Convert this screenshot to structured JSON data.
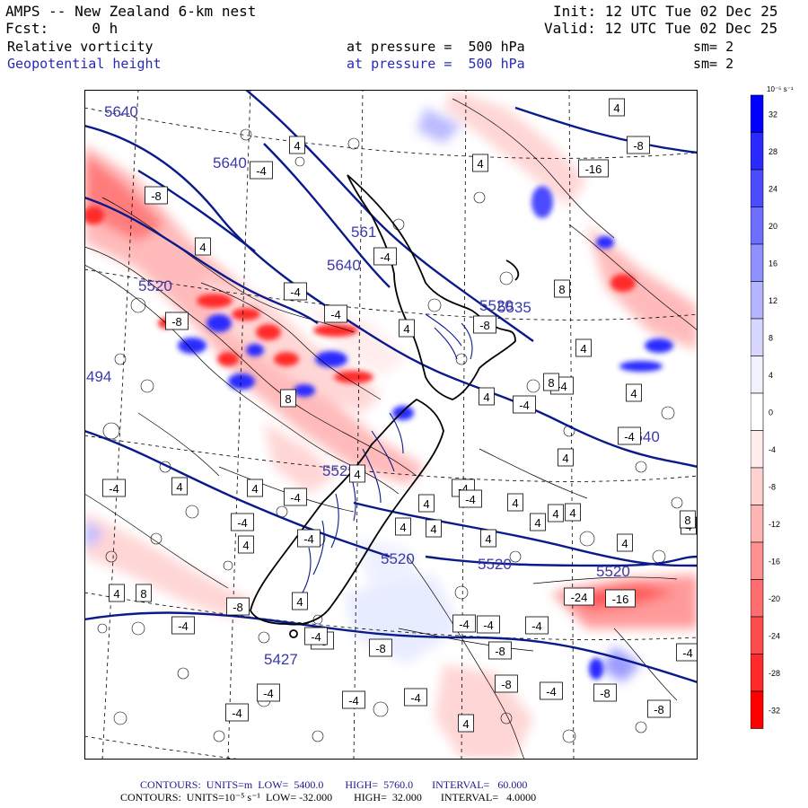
{
  "header": {
    "title": "AMPS -- New Zealand 6-km nest",
    "forecast": "Fcst:     0 h",
    "init": "Init: 12 UTC Tue 02 Dec 25",
    "valid": "Valid: 12 UTC Tue 02 Dec 25",
    "field1": {
      "name": "Relative vorticity",
      "level": "at pressure =  500 hPa",
      "smooth": "sm= 2"
    },
    "field2": {
      "name": "Geopotential height",
      "level": "at pressure =  500 hPa",
      "smooth": "sm= 2"
    }
  },
  "colorbar": {
    "unit": "10⁻⁵ s⁻¹",
    "ticks": [
      "32",
      "28",
      "24",
      "20",
      "16",
      "12",
      "8",
      "4",
      "0",
      "-4",
      "-8",
      "-12",
      "-16",
      "-20",
      "-24",
      "-28",
      "-32"
    ],
    "colors": [
      "#0000ff",
      "#2a2aff",
      "#4c4cff",
      "#6e6eff",
      "#9090ff",
      "#b4b4ff",
      "#d6d6ff",
      "#f2f2ff",
      "#ffffff",
      "#ffecec",
      "#ffd2d2",
      "#ffb4b4",
      "#ff9090",
      "#ff6e6e",
      "#ff4c4c",
      "#ff2a2a",
      "#ff0000"
    ]
  },
  "map": {
    "height_labels": [
      "5640",
      "5640",
      "5640",
      "561",
      "5520",
      "5520",
      "5520",
      "5520",
      "5520",
      "5640",
      "5427",
      "552",
      "494",
      "5535"
    ],
    "vort_labels": [
      "4",
      "4",
      "-4",
      "4",
      "-16",
      "-8",
      "-8",
      "4",
      "-4",
      "-4",
      "-4",
      "-8",
      "8",
      "-8",
      "4",
      "4",
      "-4",
      "8",
      "4",
      "-4",
      "4",
      "8",
      "-4",
      "4",
      "4",
      "-4",
      "4",
      "-4",
      "-4",
      "4",
      "-4",
      "4",
      "4",
      "4",
      "4",
      "-4",
      "4",
      "4",
      "8",
      "4",
      "4",
      "4",
      "4",
      "-4",
      "8",
      "4",
      "4",
      "-24",
      "-16",
      "-8",
      "-4",
      "-4",
      "-4",
      "-4",
      "-8",
      "-8",
      "-4",
      "-4",
      "-4",
      "-4",
      "-8",
      "-8",
      "-8",
      "-4",
      "4",
      "-4",
      "-8",
      "-4",
      "4"
    ]
  },
  "footer": {
    "line1": "CONTOURS:  UNITS=m  LOW=  5400.0        HIGH=  5760.0       INTERVAL=   60.000",
    "line2": "CONTOURS:  UNITS=10⁻⁵ s⁻¹  LOW= -32.000        HIGH=  32.000       INTERVAL=   4.0000"
  }
}
